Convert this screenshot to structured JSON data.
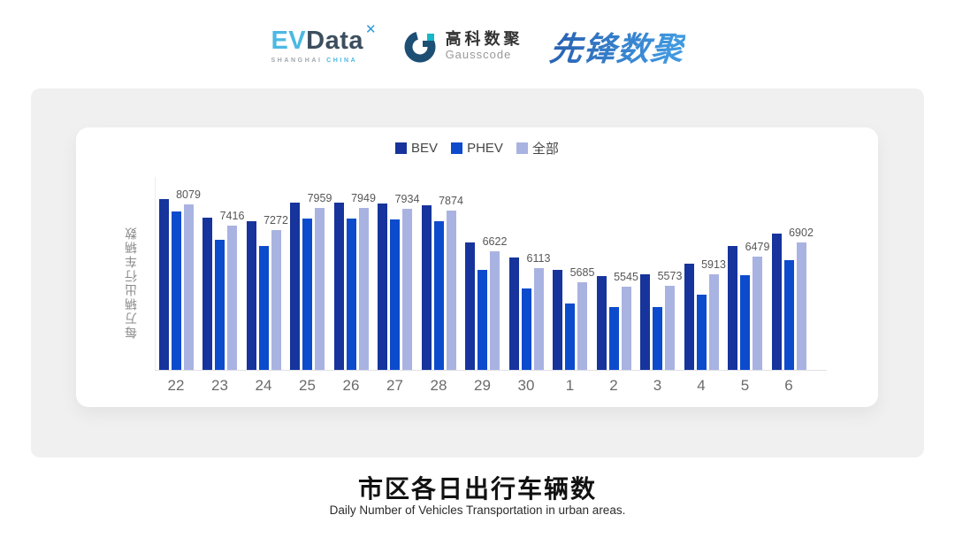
{
  "header": {
    "evdata": {
      "ev": "EV",
      "data": "Data",
      "star_icon": "✕",
      "sub_left": "SHANGHAI",
      "sub_right": "CHINA",
      "color_light": "#4cb9e2",
      "color_dark": "#3c4e5e"
    },
    "gausscode": {
      "cn": "高科数聚",
      "en": "Gausscode",
      "color_navy": "#1d4e74",
      "color_teal": "#14b8c8"
    },
    "xianfeng": {
      "text": "先锋数聚",
      "color": "#2f7cc4"
    }
  },
  "chart_data": {
    "type": "bar",
    "categories": [
      "22",
      "23",
      "24",
      "25",
      "26",
      "27",
      "28",
      "29",
      "30",
      "1",
      "2",
      "3",
      "4",
      "5",
      "6"
    ],
    "series": [
      {
        "name": "BEV",
        "color": "#16349c",
        "values": [
          8220,
          7670,
          7560,
          8130,
          8130,
          8100,
          8030,
          6910,
          6430,
          6050,
          5880,
          5930,
          6250,
          6790,
          7180
        ]
      },
      {
        "name": "PHEV",
        "color": "#0d4bcd",
        "values": [
          7860,
          6970,
          6790,
          7640,
          7640,
          7610,
          7540,
          6070,
          5500,
          5040,
          4930,
          4930,
          5310,
          5900,
          6360
        ]
      },
      {
        "name": "全部",
        "color": "#a9b3e2",
        "labeled": true,
        "values": [
          8079,
          7416,
          7272,
          7959,
          7949,
          7934,
          7874,
          6622,
          6113,
          5685,
          5545,
          5573,
          5913,
          6479,
          6902
        ]
      }
    ],
    "data_labels": [
      8079,
      7416,
      7272,
      7959,
      7949,
      7934,
      7874,
      6622,
      6113,
      5685,
      5545,
      5573,
      5913,
      6479,
      6902
    ],
    "title": "市区各日出行车辆数",
    "xlabel": "",
    "ylabel": "每万辆出行车辆数",
    "ylim": [
      3000,
      8500
    ],
    "grid": false,
    "legend_position": "top"
  },
  "footer": {
    "title": "市区各日出行车辆数",
    "subtitle": "Daily Number of Vehicles Transportation in urban areas."
  }
}
